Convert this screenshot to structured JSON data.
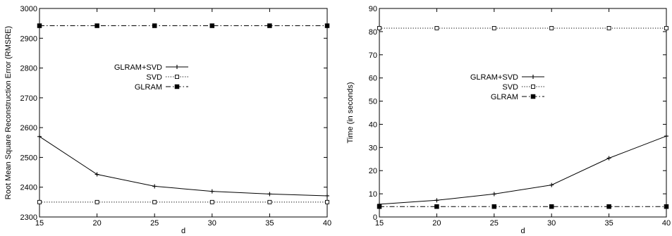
{
  "chart_data": [
    {
      "type": "line",
      "title": "",
      "xlabel": "d",
      "ylabel": "Root Mean Square Reconstruction Error (RMSRE)",
      "x": [
        15,
        20,
        25,
        30,
        35,
        40
      ],
      "xlim": [
        15,
        40
      ],
      "ylim": [
        2300,
        3000
      ],
      "xticks": [
        15,
        20,
        25,
        30,
        35,
        40
      ],
      "yticks": [
        2300,
        2400,
        2500,
        2600,
        2700,
        2800,
        2900,
        3000
      ],
      "grid": false,
      "legend_position": "center-left",
      "series": [
        {
          "name": "GLRAM+SVD",
          "style": "solid",
          "marker": "plus",
          "values": [
            2570,
            2443,
            2403,
            2386,
            2377,
            2371
          ]
        },
        {
          "name": "SVD",
          "style": "dotted",
          "marker": "open-square",
          "values": [
            2350,
            2350,
            2350,
            2350,
            2350,
            2350
          ]
        },
        {
          "name": "GLRAM",
          "style": "dash-dot",
          "marker": "filled-square",
          "values": [
            2942,
            2942,
            2942,
            2942,
            2942,
            2942
          ]
        }
      ]
    },
    {
      "type": "line",
      "title": "",
      "xlabel": "d",
      "ylabel": "Time (in seconds)",
      "x": [
        15,
        20,
        25,
        30,
        35,
        40
      ],
      "xlim": [
        15,
        40
      ],
      "ylim": [
        0,
        90
      ],
      "xticks": [
        15,
        20,
        25,
        30,
        35,
        40
      ],
      "yticks": [
        0,
        10,
        20,
        30,
        40,
        50,
        60,
        70,
        80,
        90
      ],
      "grid": false,
      "legend_position": "center-left",
      "series": [
        {
          "name": "GLRAM+SVD",
          "style": "solid",
          "marker": "plus",
          "values": [
            5.5,
            7.2,
            9.9,
            13.8,
            25.4,
            34.9
          ]
        },
        {
          "name": "SVD",
          "style": "dotted",
          "marker": "open-square",
          "values": [
            81.5,
            81.5,
            81.5,
            81.5,
            81.5,
            81.5
          ]
        },
        {
          "name": "GLRAM",
          "style": "dash-dot",
          "marker": "filled-square",
          "values": [
            4.5,
            4.5,
            4.5,
            4.5,
            4.5,
            4.5
          ]
        }
      ]
    }
  ]
}
